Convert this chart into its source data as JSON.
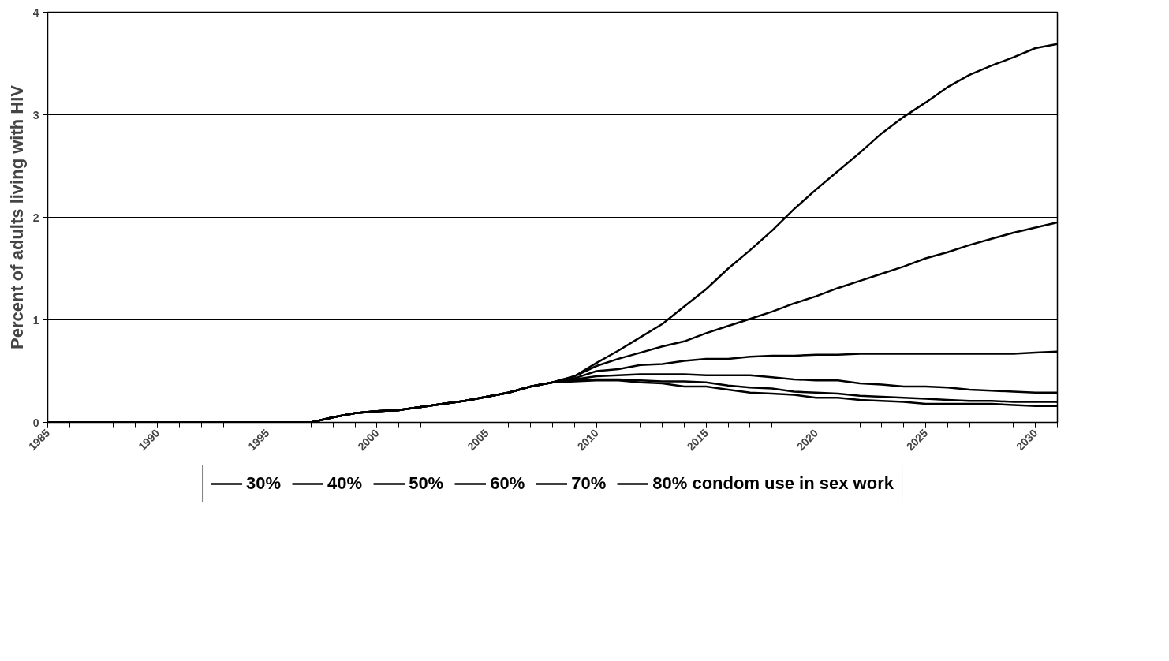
{
  "chart_data": {
    "type": "line",
    "ylabel": "Percent of adults living with HIV",
    "x": [
      1985,
      1986,
      1987,
      1988,
      1989,
      1990,
      1991,
      1992,
      1993,
      1994,
      1995,
      1996,
      1997,
      1998,
      1999,
      2000,
      2001,
      2002,
      2003,
      2004,
      2005,
      2006,
      2007,
      2008,
      2009,
      2010,
      2011,
      2012,
      2013,
      2014,
      2015,
      2016,
      2017,
      2018,
      2019,
      2020,
      2021,
      2022,
      2023,
      2024,
      2025,
      2026,
      2027,
      2028,
      2029,
      2030,
      2031
    ],
    "series": [
      {
        "name": "30%",
        "color": "#000000",
        "values": [
          0,
          0,
          0,
          0,
          0,
          0,
          0,
          0,
          0,
          0,
          0,
          0,
          0,
          0.05,
          0.09,
          0.11,
          0.12,
          0.15,
          0.18,
          0.21,
          0.25,
          0.29,
          0.35,
          0.39,
          0.45,
          0.58,
          0.7,
          0.83,
          0.96,
          1.13,
          1.3,
          1.5,
          1.68,
          1.87,
          2.08,
          2.27,
          2.45,
          2.63,
          2.82,
          2.98,
          3.12,
          3.27,
          3.39,
          3.48,
          3.56,
          3.65,
          3.69
        ]
      },
      {
        "name": "40%",
        "color": "#000000",
        "values": [
          0,
          0,
          0,
          0,
          0,
          0,
          0,
          0,
          0,
          0,
          0,
          0,
          0,
          0.05,
          0.09,
          0.11,
          0.12,
          0.15,
          0.18,
          0.21,
          0.25,
          0.29,
          0.35,
          0.39,
          0.45,
          0.55,
          0.62,
          0.68,
          0.74,
          0.79,
          0.87,
          0.94,
          1.01,
          1.08,
          1.16,
          1.23,
          1.31,
          1.38,
          1.45,
          1.52,
          1.6,
          1.66,
          1.73,
          1.79,
          1.85,
          1.9,
          1.95
        ]
      },
      {
        "name": "50%",
        "color": "#000000",
        "values": [
          0,
          0,
          0,
          0,
          0,
          0,
          0,
          0,
          0,
          0,
          0,
          0,
          0,
          0.05,
          0.09,
          0.11,
          0.12,
          0.15,
          0.18,
          0.21,
          0.25,
          0.29,
          0.35,
          0.39,
          0.43,
          0.5,
          0.52,
          0.56,
          0.57,
          0.6,
          0.62,
          0.62,
          0.64,
          0.65,
          0.65,
          0.66,
          0.66,
          0.67,
          0.67,
          0.67,
          0.67,
          0.67,
          0.67,
          0.67,
          0.67,
          0.68,
          0.69
        ]
      },
      {
        "name": "60%",
        "color": "#000000",
        "values": [
          0,
          0,
          0,
          0,
          0,
          0,
          0,
          0,
          0,
          0,
          0,
          0,
          0,
          0.05,
          0.09,
          0.11,
          0.12,
          0.15,
          0.18,
          0.21,
          0.25,
          0.29,
          0.35,
          0.39,
          0.42,
          0.45,
          0.46,
          0.47,
          0.47,
          0.47,
          0.46,
          0.46,
          0.46,
          0.44,
          0.42,
          0.41,
          0.41,
          0.38,
          0.37,
          0.35,
          0.35,
          0.34,
          0.32,
          0.31,
          0.3,
          0.29,
          0.29
        ]
      },
      {
        "name": "70%",
        "color": "#000000",
        "values": [
          0,
          0,
          0,
          0,
          0,
          0,
          0,
          0,
          0,
          0,
          0,
          0,
          0,
          0.05,
          0.09,
          0.11,
          0.12,
          0.15,
          0.18,
          0.21,
          0.25,
          0.29,
          0.35,
          0.39,
          0.41,
          0.42,
          0.42,
          0.41,
          0.4,
          0.4,
          0.39,
          0.36,
          0.34,
          0.33,
          0.3,
          0.29,
          0.28,
          0.26,
          0.25,
          0.24,
          0.23,
          0.22,
          0.21,
          0.21,
          0.2,
          0.2,
          0.2
        ]
      },
      {
        "name": "80% condom use in sex work",
        "color": "#000000",
        "values": [
          0,
          0,
          0,
          0,
          0,
          0,
          0,
          0,
          0,
          0,
          0,
          0,
          0,
          0.05,
          0.09,
          0.11,
          0.12,
          0.15,
          0.18,
          0.21,
          0.25,
          0.29,
          0.35,
          0.39,
          0.4,
          0.41,
          0.41,
          0.39,
          0.38,
          0.35,
          0.35,
          0.32,
          0.29,
          0.28,
          0.27,
          0.24,
          0.24,
          0.22,
          0.21,
          0.2,
          0.18,
          0.18,
          0.18,
          0.18,
          0.17,
          0.16,
          0.16
        ]
      }
    ],
    "xlim": [
      1985,
      2031
    ],
    "xticks": [
      1985,
      1990,
      1995,
      2000,
      2005,
      2010,
      2015,
      2020,
      2025,
      2030
    ],
    "ylim": [
      0,
      4
    ],
    "yticks": [
      0,
      1,
      2,
      3,
      4
    ],
    "grid": "y",
    "legend": "bottom",
    "marker": "none",
    "line_style": "solid"
  }
}
